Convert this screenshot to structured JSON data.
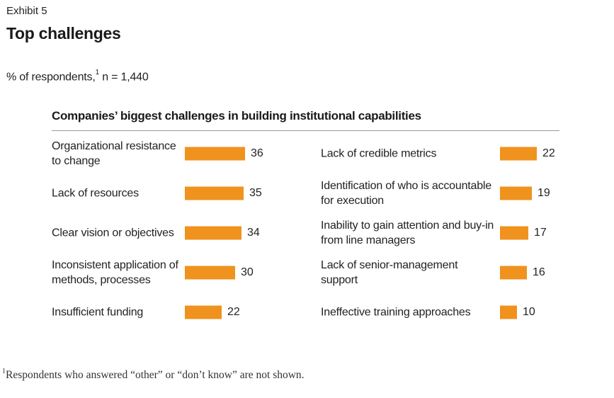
{
  "header": {
    "exhibit": "Exhibit 5",
    "title": "Top challenges",
    "subtitle_main": "% of respondents,",
    "subtitle_sup": "1",
    "subtitle_n": " n = 1,440"
  },
  "colors": {
    "bar": "#f0921e"
  },
  "chart_data": {
    "type": "bar",
    "orientation": "horizontal",
    "title": "Companies’ biggest challenges in building institutional capabilities",
    "xlim": [
      0,
      36
    ],
    "columns": [
      {
        "categories": [
          "Organizational resistance to change",
          "Lack of resources",
          "Clear vision or objectives",
          "Inconsistent application of methods, processes",
          "Insufficient funding"
        ],
        "values": [
          36,
          35,
          34,
          30,
          22
        ]
      },
      {
        "categories": [
          "Lack of credible metrics",
          "Identification of who is accountable for execution",
          "Inability to gain attention and buy-in from line managers",
          "Lack of senior-management support",
          "Ineffective training approaches"
        ],
        "values": [
          22,
          19,
          17,
          16,
          10
        ]
      }
    ]
  },
  "footnote": {
    "marker": "1",
    "text": "Respondents who answered “other” or “don’t know” are not shown."
  }
}
